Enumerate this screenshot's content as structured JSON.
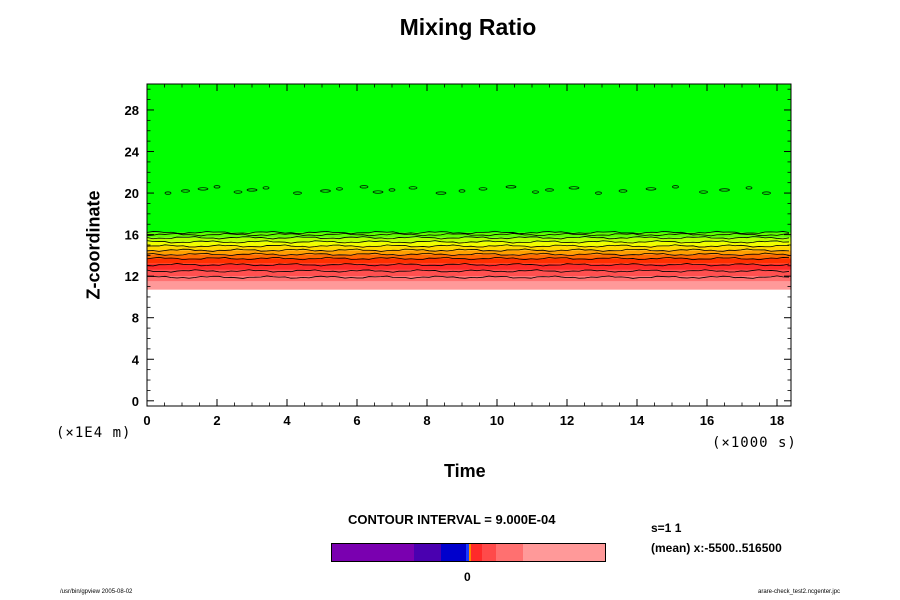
{
  "chart_data": {
    "type": "heatmap",
    "title": "Mixing Ratio",
    "xlabel": "Time",
    "ylabel": "Z-coordinate",
    "x_unit_label": "(×1000 s)",
    "y_unit_label": "(×1E4 m)",
    "xlim": [
      0,
      18.4
    ],
    "ylim": [
      -0.5,
      30.5
    ],
    "xticks": [
      "0",
      "2",
      "4",
      "6",
      "8",
      "10",
      "12",
      "14",
      "16",
      "18"
    ],
    "yticks": [
      "0",
      "4",
      "8",
      "12",
      "16",
      "20",
      "24",
      "28"
    ],
    "bands": [
      {
        "z_from": 10.7,
        "z_to": 11.5,
        "color": "#ff9999"
      },
      {
        "z_from": 11.5,
        "z_to": 12.0,
        "color": "#ff7070"
      },
      {
        "z_from": 12.0,
        "z_to": 12.6,
        "color": "#ff5050"
      },
      {
        "z_from": 12.6,
        "z_to": 13.2,
        "color": "#ff2a2a"
      },
      {
        "z_from": 13.2,
        "z_to": 13.7,
        "color": "#ff3000"
      },
      {
        "z_from": 13.7,
        "z_to": 14.1,
        "color": "#ff6a00"
      },
      {
        "z_from": 14.1,
        "z_to": 14.5,
        "color": "#ffa000"
      },
      {
        "z_from": 14.5,
        "z_to": 14.9,
        "color": "#ffd800"
      },
      {
        "z_from": 14.9,
        "z_to": 15.3,
        "color": "#f0ff00"
      },
      {
        "z_from": 15.3,
        "z_to": 15.7,
        "color": "#b8ff00"
      },
      {
        "z_from": 15.7,
        "z_to": 16.2,
        "color": "#60ff00"
      },
      {
        "z_from": 16.2,
        "z_to": 30.5,
        "color": "#00ff00"
      }
    ],
    "contour_levels_z": [
      11.9,
      12.5,
      13.1,
      13.7,
      14.1,
      14.5,
      14.9,
      15.3,
      15.7,
      16.0,
      16.2
    ],
    "contour_interval_label": "CONTOUR INTERVAL = 9.000E-04",
    "legend": {
      "zero_label": "0",
      "segments": [
        {
          "weight": 30,
          "color": "#7a00b0"
        },
        {
          "weight": 10,
          "color": "#4a00b0"
        },
        {
          "weight": 9,
          "color": "#0000cc"
        },
        {
          "weight": 1,
          "color": "#1a3aff"
        },
        {
          "weight": 1,
          "color": "#ff8800"
        },
        {
          "weight": 4,
          "color": "#ff2a2a"
        },
        {
          "weight": 5,
          "color": "#ff4a4a"
        },
        {
          "weight": 10,
          "color": "#ff7070"
        },
        {
          "weight": 30,
          "color": "#ff9999"
        }
      ]
    },
    "grid": false
  },
  "info": {
    "line1": "s=1 1",
    "line2": "(mean) x:-5500..516500"
  },
  "footer": {
    "left": "/usr/bin/gpview 2005-08-02",
    "right": "arare-check_test2.ncgenter.jpc"
  }
}
